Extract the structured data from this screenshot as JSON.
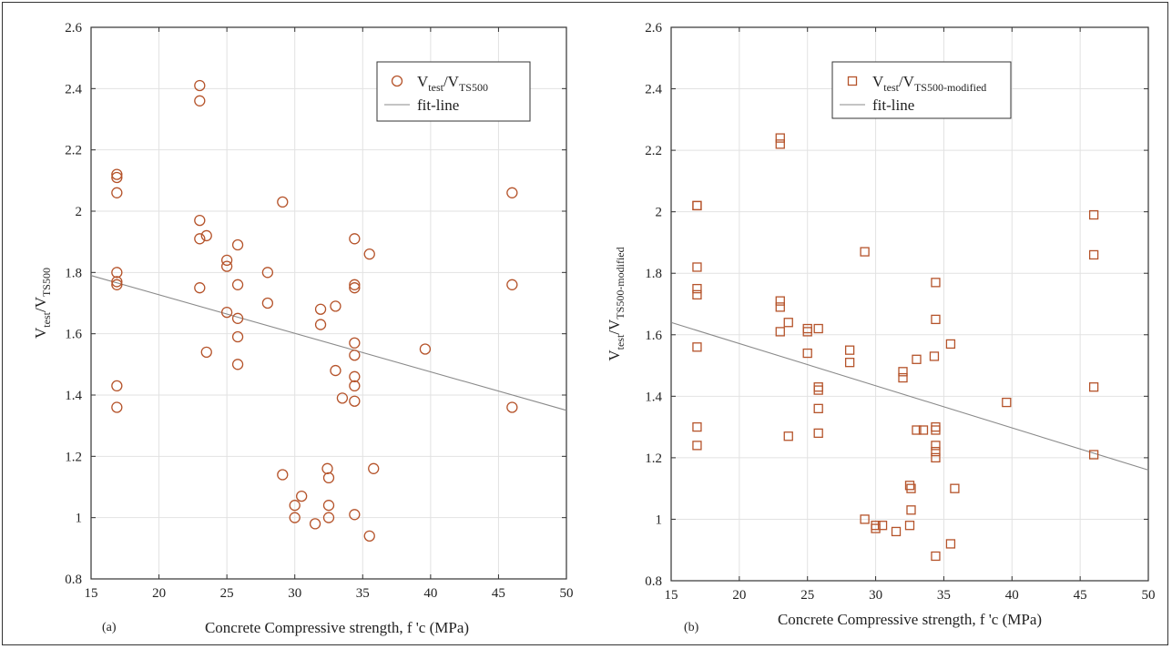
{
  "chart_data": [
    {
      "type": "scatter",
      "panel_label": "(a)",
      "xlabel": "Concrete Compressive strength, f 'c (MPa)",
      "ylabel_main": "V",
      "ylabel_sub1": "test",
      "ylabel_mid": "/V",
      "ylabel_sub2": "TS500",
      "xlim": [
        15,
        50
      ],
      "ylim": [
        0.8,
        2.6
      ],
      "xticks": [
        15,
        20,
        25,
        30,
        35,
        40,
        45,
        50
      ],
      "yticks": [
        0.8,
        1,
        1.2,
        1.4,
        1.6,
        1.8,
        2,
        2.2,
        2.4,
        2.6
      ],
      "ytick_labels": [
        "0.8",
        "1",
        "1.2",
        "1.4",
        "1.6",
        "1.8",
        "2",
        "2.2",
        "2.4",
        "2.6"
      ],
      "xtick_labels": [
        "15",
        "20",
        "25",
        "30",
        "35",
        "40",
        "45",
        "50"
      ],
      "grid": true,
      "legend_position": "top-right",
      "marker": "circle",
      "color": "#b5532a",
      "fit_color": "#8a8a8a",
      "legend": {
        "series_main": "V",
        "series_sub1": "test",
        "series_mid": "/V",
        "series_sub2": "TS500",
        "fit_label": "fit-line"
      },
      "fit_line": {
        "x": [
          15,
          50
        ],
        "y": [
          1.79,
          1.35
        ]
      },
      "points": [
        [
          16.9,
          2.12
        ],
        [
          16.9,
          2.11
        ],
        [
          16.9,
          2.06
        ],
        [
          16.9,
          1.8
        ],
        [
          16.9,
          1.77
        ],
        [
          16.9,
          1.76
        ],
        [
          16.9,
          1.43
        ],
        [
          16.9,
          1.36
        ],
        [
          23.0,
          2.41
        ],
        [
          23.0,
          2.36
        ],
        [
          23.0,
          1.97
        ],
        [
          23.0,
          1.91
        ],
        [
          23.0,
          1.75
        ],
        [
          23.5,
          1.92
        ],
        [
          23.5,
          1.54
        ],
        [
          25.0,
          1.84
        ],
        [
          25.0,
          1.82
        ],
        [
          25.0,
          1.67
        ],
        [
          25.8,
          1.89
        ],
        [
          25.8,
          1.76
        ],
        [
          25.8,
          1.65
        ],
        [
          25.8,
          1.59
        ],
        [
          25.8,
          1.5
        ],
        [
          28.0,
          1.8
        ],
        [
          28.0,
          1.7
        ],
        [
          29.1,
          2.03
        ],
        [
          29.1,
          1.14
        ],
        [
          30.0,
          1.04
        ],
        [
          30.0,
          1.0
        ],
        [
          30.5,
          1.07
        ],
        [
          31.5,
          0.98
        ],
        [
          31.9,
          1.68
        ],
        [
          31.9,
          1.63
        ],
        [
          32.4,
          1.16
        ],
        [
          32.5,
          1.13
        ],
        [
          32.5,
          1.04
        ],
        [
          32.5,
          1.0
        ],
        [
          33.0,
          1.69
        ],
        [
          33.0,
          1.48
        ],
        [
          33.5,
          1.39
        ],
        [
          34.4,
          1.91
        ],
        [
          34.4,
          1.76
        ],
        [
          34.4,
          1.75
        ],
        [
          34.4,
          1.57
        ],
        [
          34.4,
          1.53
        ],
        [
          34.4,
          1.46
        ],
        [
          34.4,
          1.43
        ],
        [
          34.4,
          1.38
        ],
        [
          34.4,
          1.01
        ],
        [
          35.5,
          1.86
        ],
        [
          35.5,
          0.94
        ],
        [
          35.8,
          1.16
        ],
        [
          39.6,
          1.55
        ],
        [
          46.0,
          2.06
        ],
        [
          46.0,
          1.76
        ],
        [
          46.0,
          1.36
        ]
      ]
    },
    {
      "type": "scatter",
      "panel_label": "(b)",
      "xlabel": "Concrete Compressive strength, f 'c (MPa)",
      "ylabel_main": "V",
      "ylabel_sub1": "test",
      "ylabel_mid": "/V",
      "ylabel_sub2": "TS500-modified",
      "xlim": [
        15,
        50
      ],
      "ylim": [
        0.8,
        2.6
      ],
      "xticks": [
        15,
        20,
        25,
        30,
        35,
        40,
        45,
        50
      ],
      "yticks": [
        0.8,
        1,
        1.2,
        1.4,
        1.6,
        1.8,
        2,
        2.2,
        2.4,
        2.6
      ],
      "ytick_labels": [
        "0.8",
        "1",
        "1.2",
        "1.4",
        "1.6",
        "1.8",
        "2",
        "2.2",
        "2.4",
        "2.6"
      ],
      "xtick_labels": [
        "15",
        "20",
        "25",
        "30",
        "35",
        "40",
        "45",
        "50"
      ],
      "grid": true,
      "legend_position": "top-right",
      "marker": "square",
      "color": "#b5532a",
      "fit_color": "#8a8a8a",
      "legend": {
        "series_main": "V",
        "series_sub1": "test",
        "series_mid": "/V",
        "series_sub2": "TS500-modified",
        "fit_label": "fit-line"
      },
      "fit_line": {
        "x": [
          15,
          50
        ],
        "y": [
          1.64,
          1.16
        ]
      },
      "points": [
        [
          16.9,
          2.02
        ],
        [
          16.9,
          2.02
        ],
        [
          16.9,
          1.82
        ],
        [
          16.9,
          1.75
        ],
        [
          16.9,
          1.73
        ],
        [
          16.9,
          1.56
        ],
        [
          16.9,
          1.3
        ],
        [
          16.9,
          1.24
        ],
        [
          23.0,
          2.24
        ],
        [
          23.0,
          2.22
        ],
        [
          23.0,
          1.71
        ],
        [
          23.0,
          1.69
        ],
        [
          23.0,
          1.61
        ],
        [
          23.6,
          1.64
        ],
        [
          23.6,
          1.27
        ],
        [
          25.0,
          1.62
        ],
        [
          25.0,
          1.61
        ],
        [
          25.0,
          1.54
        ],
        [
          25.8,
          1.62
        ],
        [
          25.8,
          1.43
        ],
        [
          25.8,
          1.42
        ],
        [
          25.8,
          1.36
        ],
        [
          25.8,
          1.28
        ],
        [
          28.1,
          1.55
        ],
        [
          28.1,
          1.51
        ],
        [
          29.2,
          1.87
        ],
        [
          29.2,
          1.0
        ],
        [
          30.0,
          0.98
        ],
        [
          30.0,
          0.97
        ],
        [
          30.5,
          0.98
        ],
        [
          31.5,
          0.96
        ],
        [
          32.0,
          1.48
        ],
        [
          32.0,
          1.46
        ],
        [
          32.5,
          1.11
        ],
        [
          32.6,
          1.1
        ],
        [
          32.6,
          1.03
        ],
        [
          32.5,
          0.98
        ],
        [
          33.0,
          1.52
        ],
        [
          33.0,
          1.29
        ],
        [
          33.5,
          1.29
        ],
        [
          34.4,
          1.77
        ],
        [
          34.4,
          1.65
        ],
        [
          34.3,
          1.53
        ],
        [
          34.4,
          1.3
        ],
        [
          34.4,
          1.29
        ],
        [
          34.4,
          1.24
        ],
        [
          34.4,
          1.22
        ],
        [
          34.4,
          1.2
        ],
        [
          34.4,
          0.88
        ],
        [
          35.5,
          1.57
        ],
        [
          35.5,
          0.92
        ],
        [
          35.8,
          1.1
        ],
        [
          39.6,
          1.38
        ],
        [
          46.0,
          1.99
        ],
        [
          46.0,
          1.86
        ],
        [
          46.0,
          1.43
        ],
        [
          46.0,
          1.21
        ]
      ]
    }
  ]
}
